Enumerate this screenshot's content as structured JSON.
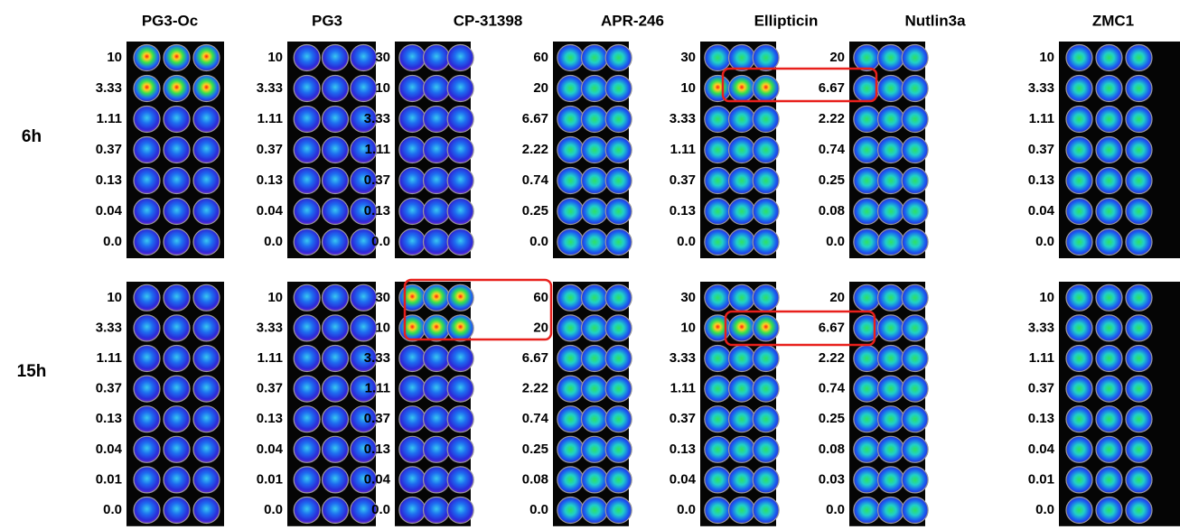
{
  "columns": [
    {
      "name": "PG3-Oc",
      "h6": [
        "10",
        "3.33",
        "1.11",
        "0.37",
        "0.13",
        "0.04",
        "0.0"
      ],
      "h15": [
        "10",
        "3.33",
        "1.11",
        "0.37",
        "0.13",
        "0.04",
        "0.01",
        "0.0"
      ]
    },
    {
      "name": "PG3",
      "h6": [
        "10",
        "3.33",
        "1.11",
        "0.37",
        "0.13",
        "0.04",
        "0.0"
      ],
      "h15": [
        "10",
        "3.33",
        "1.11",
        "0.37",
        "0.13",
        "0.04",
        "0.01",
        "0.0"
      ]
    },
    {
      "name": "CP-31398",
      "h6": [
        "30",
        "10",
        "3.33",
        "1.11",
        "0.37",
        "0.13",
        "0.0"
      ],
      "h15": [
        "30",
        "10",
        "3.33",
        "1.11",
        "0.37",
        "0.13",
        "0.04",
        "0.0"
      ]
    },
    {
      "name": "APR-246",
      "h6": [
        "60",
        "20",
        "6.67",
        "2.22",
        "0.74",
        "0.25",
        "0.0"
      ],
      "h15": [
        "60",
        "20",
        "6.67",
        "2.22",
        "0.74",
        "0.25",
        "0.08",
        "0.0"
      ]
    },
    {
      "name": "Ellipticin",
      "h6": [
        "30",
        "10",
        "3.33",
        "1.11",
        "0.37",
        "0.13",
        "0.0"
      ],
      "h15": [
        "30",
        "10",
        "3.33",
        "1.11",
        "0.37",
        "0.13",
        "0.04",
        "0.0"
      ]
    },
    {
      "name": "Nutlin3a",
      "h6": [
        "20",
        "6.67",
        "2.22",
        "0.74",
        "0.25",
        "0.08",
        "0.0"
      ],
      "h15": [
        "20",
        "6.67",
        "2.22",
        "0.74",
        "0.25",
        "0.08",
        "0.03",
        "0.0"
      ]
    },
    {
      "name": "ZMC1",
      "h6": [
        "10",
        "3.33",
        "1.11",
        "0.37",
        "0.13",
        "0.04",
        "0.0"
      ],
      "h15": [
        "10",
        "3.33",
        "1.11",
        "0.37",
        "0.13",
        "0.04",
        "0.01",
        "0.0"
      ]
    }
  ],
  "time_labels": {
    "h6": "6h",
    "h15": "15h"
  }
}
